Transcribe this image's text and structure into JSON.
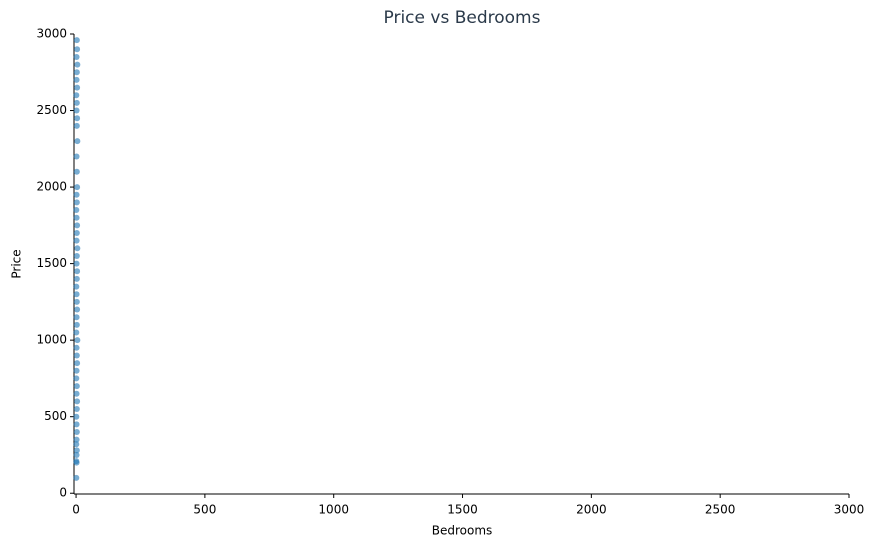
{
  "chart_data": {
    "type": "scatter",
    "title": "Price vs Bedrooms",
    "x_label": "Bedrooms",
    "y_label": "Price",
    "color": "#1f77b4",
    "x": [
      1,
      2,
      1,
      2,
      3,
      1,
      2,
      3,
      2,
      1,
      3,
      4,
      2,
      3,
      1,
      2,
      4,
      3,
      2,
      5,
      1,
      3,
      2,
      4,
      3,
      2,
      1,
      3,
      4,
      2,
      3,
      5,
      2,
      3,
      4,
      2,
      1,
      3,
      2,
      4,
      3,
      2,
      5,
      3,
      4,
      2,
      3,
      1,
      4,
      2,
      3,
      5,
      2,
      4,
      3
    ],
    "values": [
      100,
      200,
      210,
      250,
      280,
      320,
      350,
      400,
      450,
      500,
      550,
      600,
      650,
      700,
      750,
      800,
      850,
      900,
      950,
      1000,
      1050,
      1100,
      1150,
      1200,
      1250,
      1300,
      1350,
      1400,
      1450,
      1500,
      1550,
      1600,
      1650,
      1700,
      1750,
      1800,
      1850,
      1900,
      1950,
      2000,
      2100,
      2200,
      2300,
      2400,
      2450,
      2500,
      2550,
      2600,
      2650,
      2700,
      2750,
      2800,
      2850,
      2900,
      2960
    ],
    "xlim": [
      -8,
      3000
    ],
    "ylim": [
      -5,
      3000
    ],
    "xticks": [
      0,
      500,
      1000,
      1500,
      2000,
      2500,
      3000
    ],
    "yticks": [
      0,
      500,
      1000,
      1500,
      2000,
      2500,
      3000
    ]
  }
}
